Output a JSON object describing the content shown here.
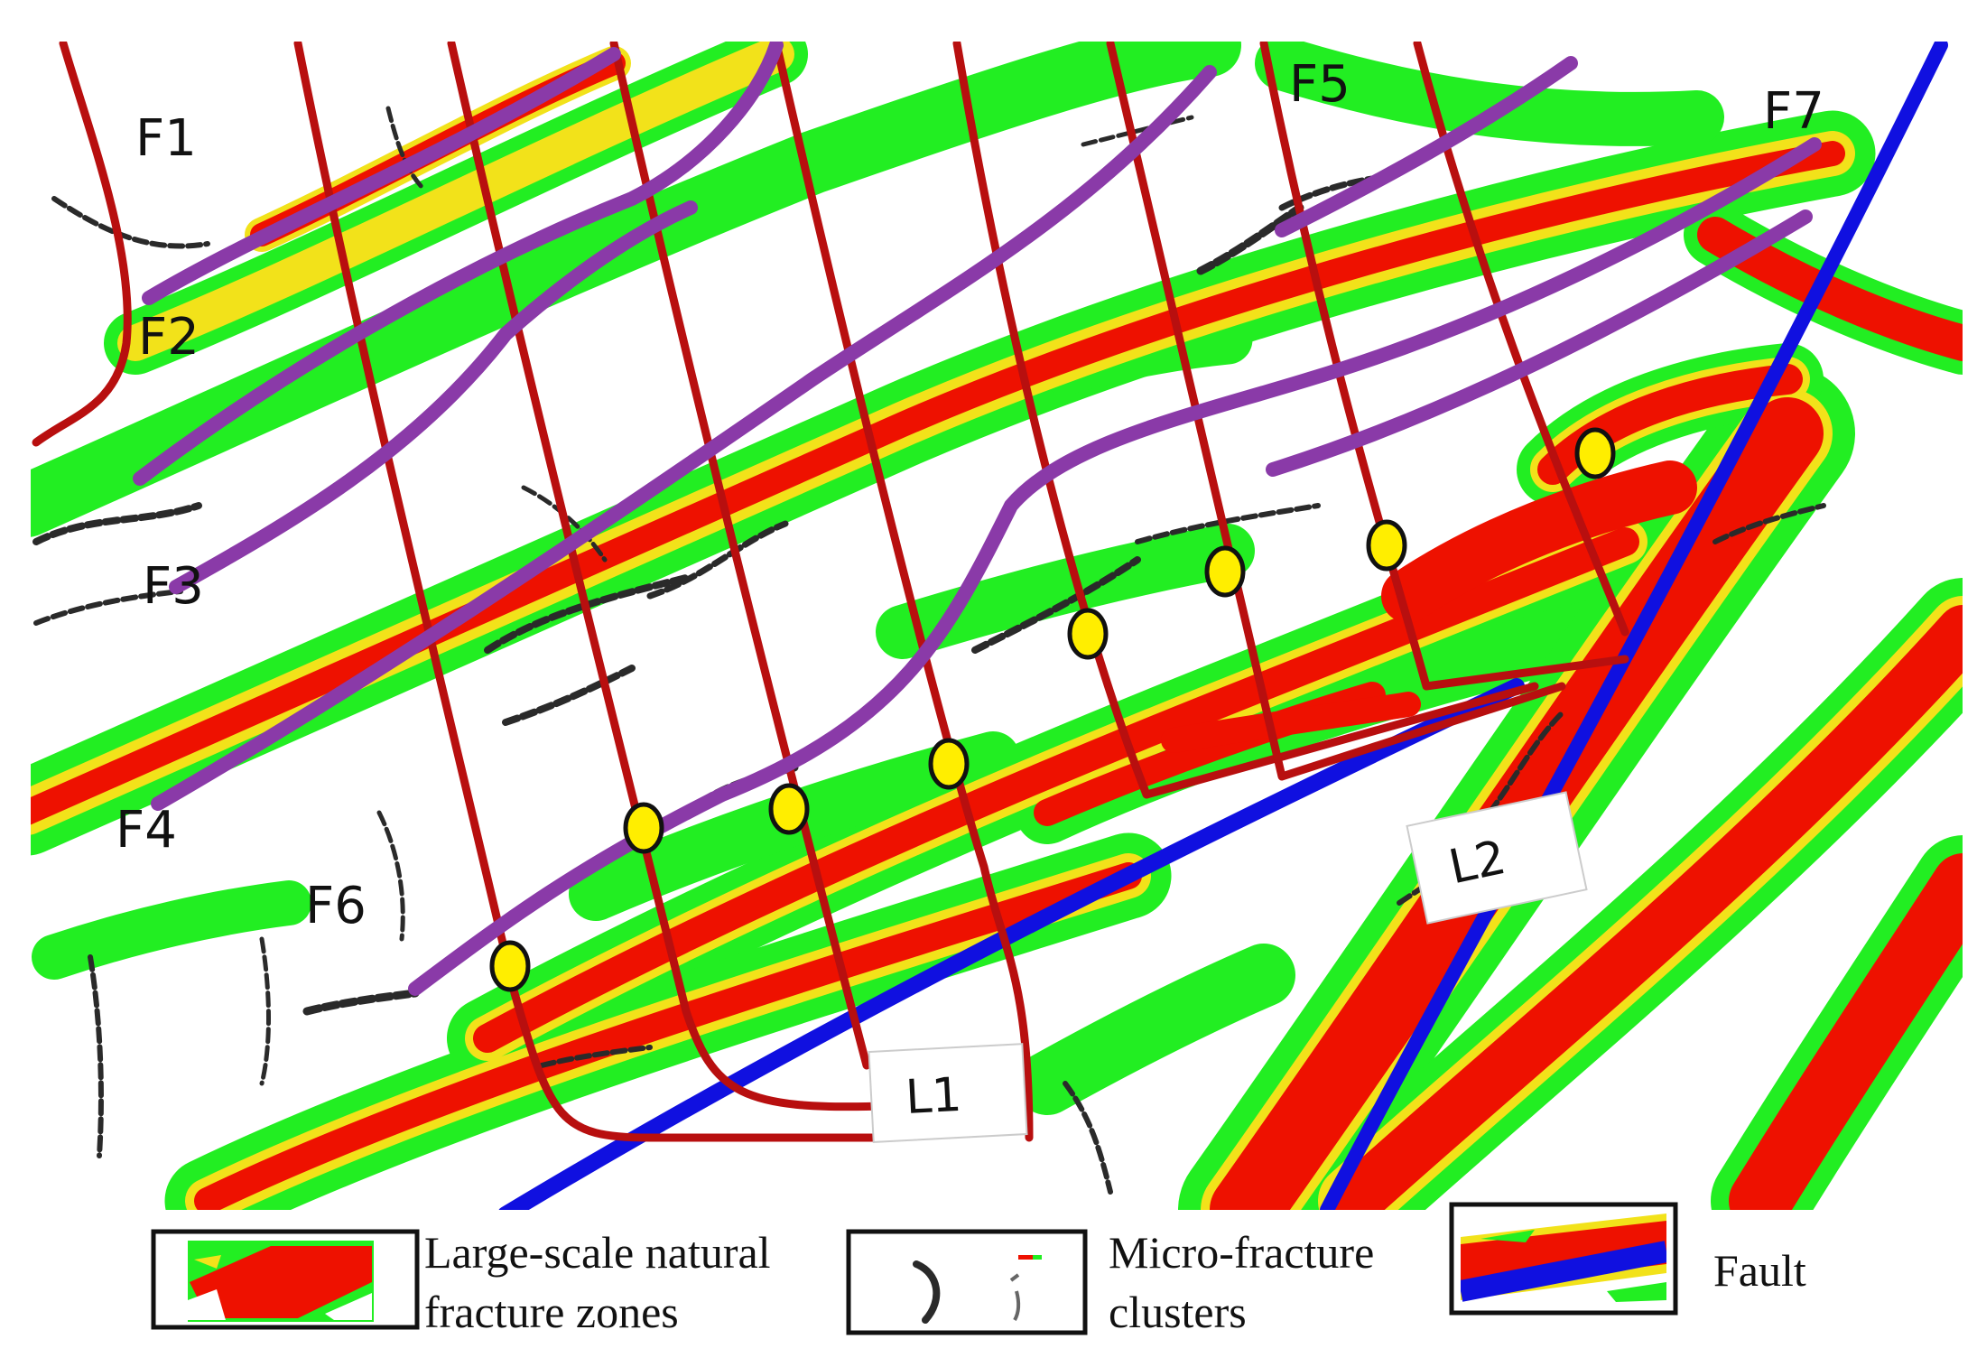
{
  "colors": {
    "fracture_red": "#ee1100",
    "fracture_yellow": "#f2e21a",
    "fracture_green": "#22ee22",
    "micro_black": "#2a2a2a",
    "fault_blue": "#1010e0",
    "well_red": "#b80f0f",
    "trace_purple": "#8a3aa8",
    "point_yellow": "#ffee00"
  },
  "zone_labels": {
    "f1": "F1",
    "f2": "F2",
    "f3": "F3",
    "f4": "F4",
    "f5": "F5",
    "f6": "F6",
    "f7": "F7"
  },
  "line_labels": {
    "l1": "L1",
    "l2": "L2"
  },
  "legend": {
    "large_scale_line1": "Large-scale natural",
    "large_scale_line2": "fracture zones",
    "micro_line1": "Micro-fracture",
    "micro_line2": "clusters",
    "fault": "Fault"
  }
}
